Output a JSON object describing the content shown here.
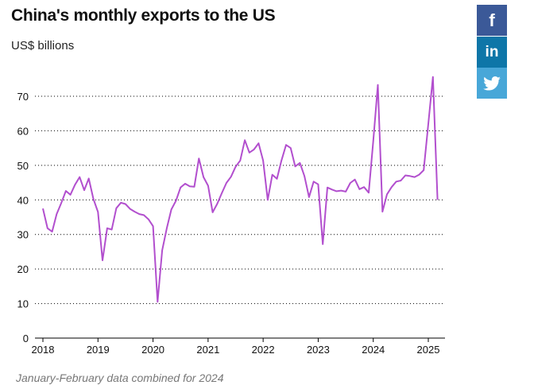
{
  "header": {
    "title": "China's monthly exports to the US",
    "subtitle": "US$ billions"
  },
  "footer": {
    "note": "January-February data combined for 2024"
  },
  "share": {
    "facebook_label": "f",
    "linkedin_label": "in",
    "twitter_icon": "twitter-bird-icon"
  },
  "colors": {
    "line": "#b24fce",
    "grid": "#000000",
    "facebook": "#3b5998",
    "linkedin": "#0e76a8",
    "twitter": "#48a7d8"
  },
  "chart_data": {
    "type": "line",
    "title": "China's monthly exports to the US",
    "ylabel": "US$ billions",
    "xlabel": "",
    "xlim": [
      2018.0,
      2025.3
    ],
    "ylim": [
      0,
      75
    ],
    "grid": true,
    "y_ticks": [
      0,
      10,
      20,
      30,
      40,
      50,
      60,
      70
    ],
    "x_ticks": [
      2018,
      2019,
      2020,
      2021,
      2022,
      2023,
      2024,
      2025
    ],
    "x_tick_labels": [
      "2018",
      "2019",
      "2020",
      "2021",
      "2022",
      "2023",
      "2024",
      "2025"
    ],
    "series": [
      {
        "points": [
          [
            2018.0,
            37.5
          ],
          [
            2018.083,
            31.8
          ],
          [
            2018.167,
            30.8
          ],
          [
            2018.25,
            35.9
          ],
          [
            2018.333,
            39.1
          ],
          [
            2018.417,
            42.6
          ],
          [
            2018.5,
            41.5
          ],
          [
            2018.583,
            44.4
          ],
          [
            2018.667,
            46.6
          ],
          [
            2018.75,
            42.8
          ],
          [
            2018.833,
            46.2
          ],
          [
            2018.917,
            40.3
          ],
          [
            2019.0,
            36.5
          ],
          [
            2019.083,
            22.5
          ],
          [
            2019.167,
            31.8
          ],
          [
            2019.25,
            31.4
          ],
          [
            2019.333,
            37.6
          ],
          [
            2019.417,
            39.2
          ],
          [
            2019.5,
            38.8
          ],
          [
            2019.583,
            37.4
          ],
          [
            2019.667,
            36.6
          ],
          [
            2019.75,
            35.9
          ],
          [
            2019.833,
            35.6
          ],
          [
            2019.917,
            34.4
          ],
          [
            2020.0,
            32.4
          ],
          [
            2020.083,
            10.5
          ],
          [
            2020.167,
            25.4
          ],
          [
            2020.25,
            31.8
          ],
          [
            2020.333,
            37.2
          ],
          [
            2020.417,
            39.8
          ],
          [
            2020.5,
            43.6
          ],
          [
            2020.583,
            44.7
          ],
          [
            2020.667,
            43.9
          ],
          [
            2020.75,
            43.8
          ],
          [
            2020.833,
            52.0
          ],
          [
            2020.917,
            46.6
          ],
          [
            2021.0,
            44.1
          ],
          [
            2021.083,
            36.4
          ],
          [
            2021.167,
            38.9
          ],
          [
            2021.25,
            42.0
          ],
          [
            2021.333,
            44.9
          ],
          [
            2021.417,
            46.7
          ],
          [
            2021.5,
            49.6
          ],
          [
            2021.583,
            51.4
          ],
          [
            2021.667,
            57.3
          ],
          [
            2021.75,
            53.7
          ],
          [
            2021.833,
            54.6
          ],
          [
            2021.917,
            56.4
          ],
          [
            2022.0,
            51.4
          ],
          [
            2022.083,
            40.0
          ],
          [
            2022.167,
            47.3
          ],
          [
            2022.25,
            46.1
          ],
          [
            2022.333,
            51.4
          ],
          [
            2022.417,
            55.9
          ],
          [
            2022.5,
            55.0
          ],
          [
            2022.583,
            49.7
          ],
          [
            2022.667,
            50.7
          ],
          [
            2022.75,
            46.9
          ],
          [
            2022.833,
            40.8
          ],
          [
            2022.917,
            45.3
          ],
          [
            2023.0,
            44.5
          ],
          [
            2023.083,
            27.2
          ],
          [
            2023.167,
            43.6
          ],
          [
            2023.25,
            43.0
          ],
          [
            2023.333,
            42.5
          ],
          [
            2023.417,
            42.7
          ],
          [
            2023.5,
            42.4
          ],
          [
            2023.583,
            44.9
          ],
          [
            2023.667,
            45.9
          ],
          [
            2023.75,
            43.1
          ],
          [
            2023.833,
            43.7
          ],
          [
            2023.917,
            42.1
          ],
          [
            2024.0,
            57.0
          ],
          [
            2024.083,
            73.3
          ],
          [
            2024.167,
            36.6
          ],
          [
            2024.25,
            41.6
          ],
          [
            2024.333,
            43.7
          ],
          [
            2024.417,
            45.3
          ],
          [
            2024.5,
            45.6
          ],
          [
            2024.583,
            47.1
          ],
          [
            2024.667,
            46.9
          ],
          [
            2024.75,
            46.6
          ],
          [
            2024.833,
            47.3
          ],
          [
            2024.917,
            48.6
          ],
          [
            2025.0,
            62.0
          ],
          [
            2025.083,
            75.6
          ],
          [
            2025.167,
            40.0
          ]
        ]
      }
    ]
  }
}
